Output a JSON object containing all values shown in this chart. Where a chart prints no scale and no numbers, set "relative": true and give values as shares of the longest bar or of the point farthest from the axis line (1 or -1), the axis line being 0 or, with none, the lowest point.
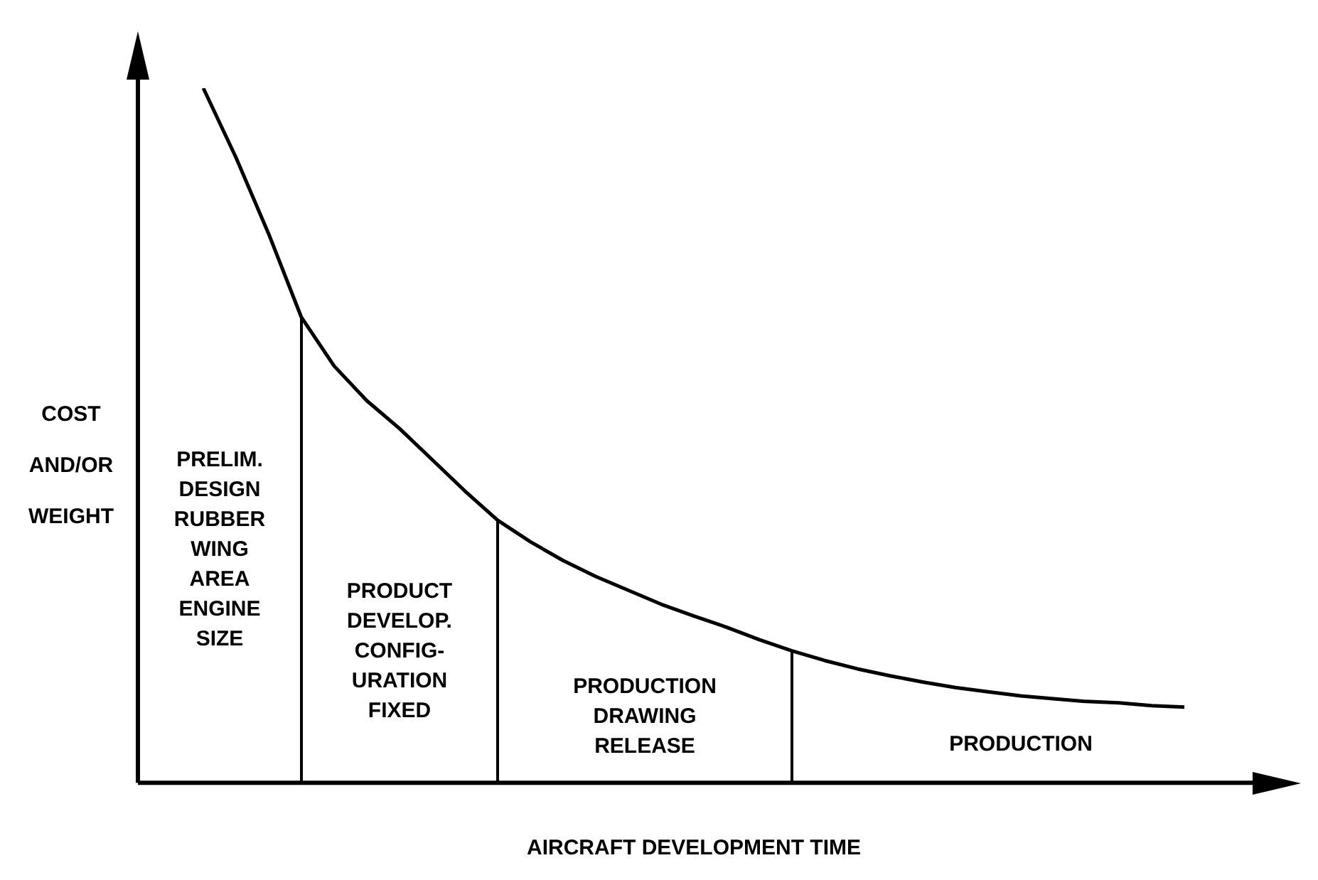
{
  "chart_data": {
    "type": "line",
    "relative": true,
    "xlabel": "AIRCRAFT DEVELOPMENT TIME",
    "ylabel": "COST\nAND/OR\nWEIGHT",
    "legend": false,
    "marker": "none",
    "line_style": "solid",
    "categories": [
      null,
      null,
      null,
      null,
      null,
      null,
      null,
      null,
      null,
      null,
      null,
      null,
      null,
      null,
      null,
      null,
      null,
      null,
      null,
      null,
      null,
      null,
      null,
      null,
      null,
      null,
      null,
      null,
      null,
      null,
      null,
      null,
      null,
      null,
      null
    ],
    "series": [
      {
        "color": "#000000",
        "values": [
          null,
          null,
          1,
          0.9,
          0.79,
          0.67,
          0.6,
          0.55,
          0.51,
          0.465,
          0.42,
          0.378,
          0.347,
          0.32,
          0.297,
          0.277,
          0.257,
          0.24,
          0.224,
          0.206,
          0.19,
          0.176,
          0.164,
          0.154,
          0.145,
          0.137,
          0.131,
          0.125,
          0.121,
          0.117,
          0.115,
          0.111,
          0.109,
          null,
          null
        ]
      }
    ],
    "annotations": [
      "PRELIM.\nDESIGN\nRUBBER\nWING\nAREA\nENGINE\nSIZE",
      "PRODUCT\nDEVELOP.\nCONFIG-\nURATION\nFIXED",
      "PRODUCTION\nDRAWING\nRELEASE",
      "PRODUCTION"
    ]
  }
}
